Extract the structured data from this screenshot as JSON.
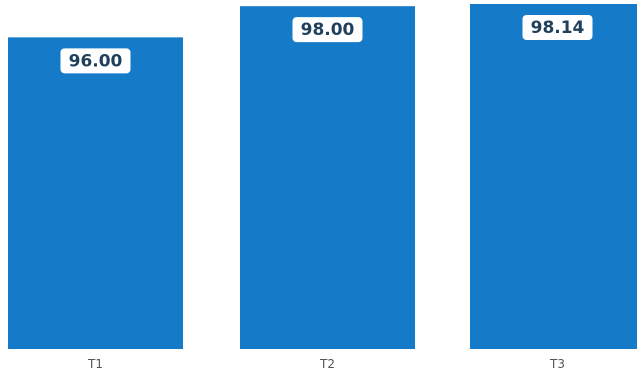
{
  "chart_data": {
    "type": "bar",
    "categories": [
      "T1",
      "T2",
      "T3"
    ],
    "values": [
      96.0,
      98.0,
      98.14
    ],
    "data_labels": [
      "96.00",
      "98.00",
      "98.14"
    ],
    "title": "",
    "xlabel": "",
    "ylabel": "",
    "grid": false,
    "legend": "none",
    "colors": {
      "bar": "#157bc9",
      "label_box": "#ffffff",
      "label_text": "#1f3f5b",
      "tick_text": "#555555",
      "background": "#ffffff"
    }
  }
}
